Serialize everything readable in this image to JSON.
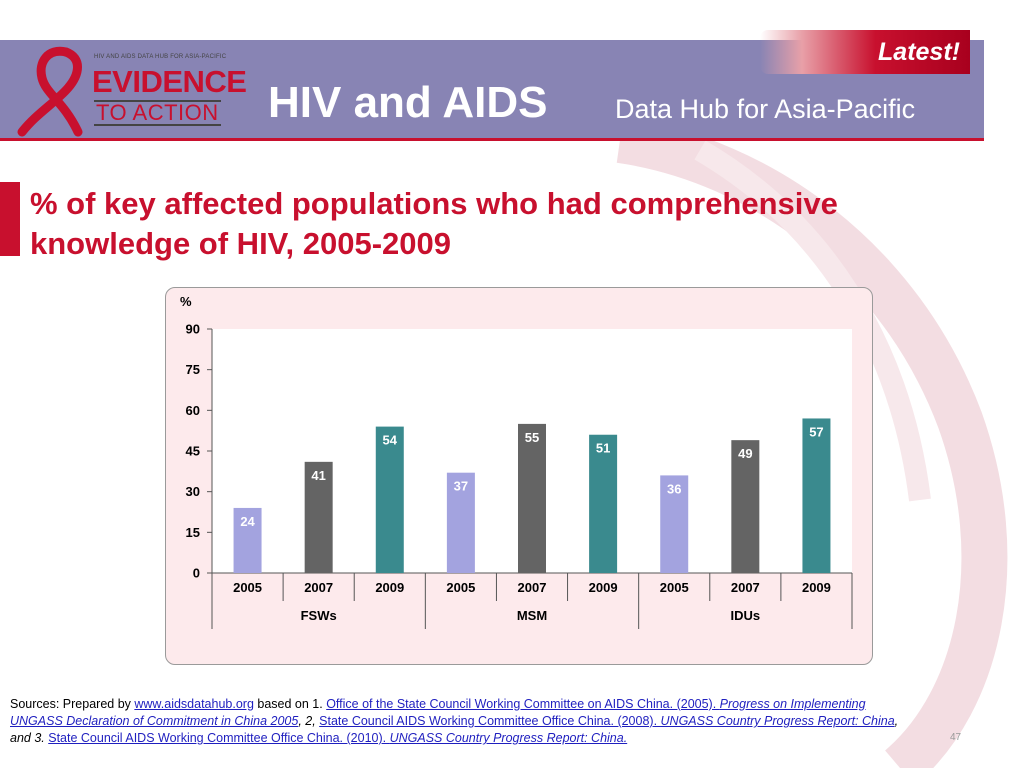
{
  "header": {
    "hub_line": "HIV AND AIDS DATA HUB FOR ASIA-PACIFIC",
    "logo_word1": "EVIDENCE",
    "logo_word2": "TO ACTION",
    "title_main": "HIV and AIDS",
    "title_sub": "Data Hub for Asia-Pacific",
    "latest_label": "Latest!"
  },
  "colors": {
    "banner": "#8884b4",
    "accent_red": "#c8102e",
    "bar_2005": "#a3a3df",
    "bar_2007": "#646464",
    "bar_2009": "#3a8a8e"
  },
  "slide_title": "% of key affected populations who had comprehensive knowledge of HIV, 2005-2009",
  "chart_data": {
    "type": "bar",
    "ylabel": "%",
    "ylim": [
      0,
      90
    ],
    "yticks": [
      "0",
      "15",
      "30",
      "45",
      "60",
      "75",
      "90"
    ],
    "groups": [
      "FSWs",
      "MSM",
      "IDUs"
    ],
    "categories": [
      "2005",
      "2007",
      "2009",
      "2005",
      "2007",
      "2009",
      "2005",
      "2007",
      "2009"
    ],
    "values": [
      24,
      41,
      54,
      37,
      55,
      51,
      36,
      49,
      57
    ],
    "grid": false,
    "legend": "none"
  },
  "sources": {
    "prefix": "Sources: Prepared by ",
    "link_site": "www.aidsdatahub.org",
    "based_on": "  based on 1. ",
    "src1_org": "Office of the State Council Working Committee on AIDS China. (2005). ",
    "src1_title": "Progress on Implementing UNGASS Declaration of Commitment in China 2005",
    "sep2": ", 2, ",
    "src2_org": "State Council AIDS Working Committee Office China. (2008). ",
    "src2_title": "UNGASS Country Progress Report: China",
    "sep3": ", and 3.  ",
    "src3_org": "State Council AIDS Working Committee Office China. (2010). ",
    "src3_title": "UNGASS Country Progress Report: China."
  },
  "page_number": "47"
}
